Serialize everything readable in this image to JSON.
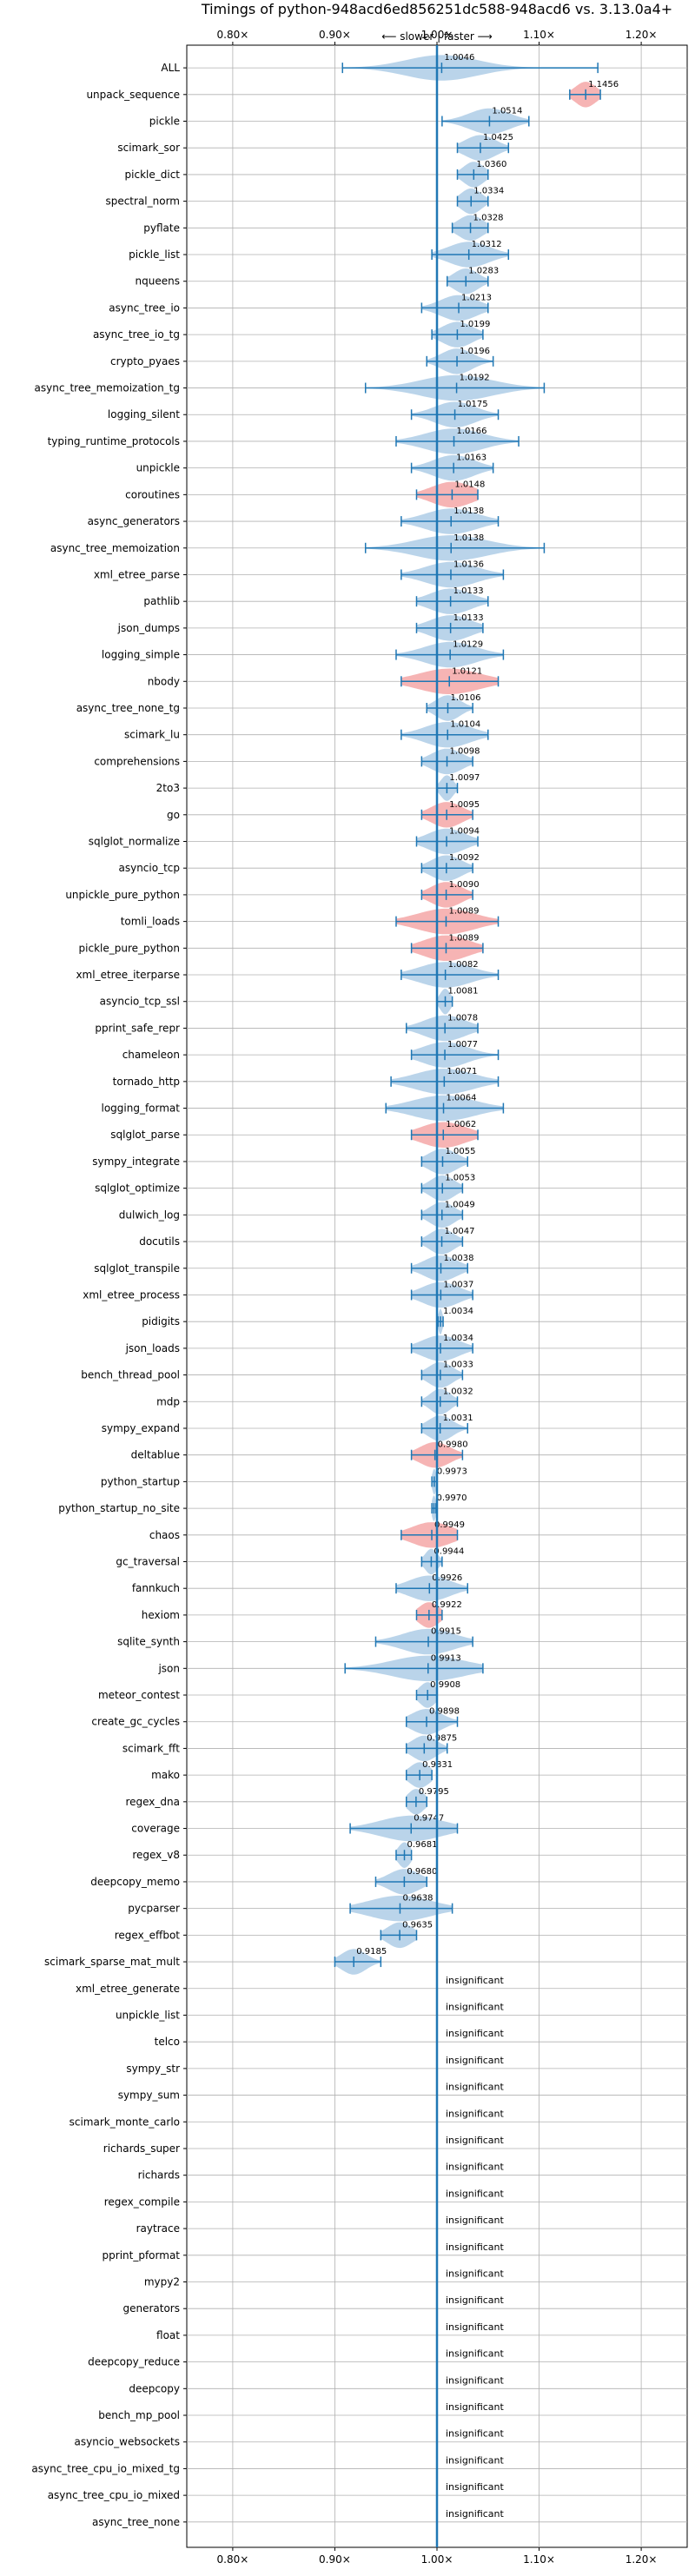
{
  "chart_data": {
    "type": "violin",
    "title": "Timings of python-948acd6ed856251dc588-948acd6 vs. 3.13.0a4+",
    "direction_label": "⟵ slower  |  faster ⟶",
    "xlim": [
      0.755,
      1.245
    ],
    "x_ticks": [
      0.8,
      0.9,
      1.0,
      1.1,
      1.2
    ],
    "x_tick_labels": [
      "0.80×",
      "0.90×",
      "1.00×",
      "1.10×",
      "1.20×"
    ],
    "grid": true,
    "colors": {
      "faster": "#aecde6",
      "slower": "#f5a7a7",
      "line": "#1f77b4",
      "grid": "#b0b0b0"
    },
    "insignificant_label": "insignificant",
    "benchmarks": [
      {
        "name": "ALL",
        "value": 1.0046,
        "min": 0.9075,
        "max": 1.1575,
        "spread": 0.035,
        "kind": "faster"
      },
      {
        "name": "unpack_sequence",
        "value": 1.1456,
        "min": 1.13,
        "max": 1.16,
        "spread": 0.01,
        "kind": "slower"
      },
      {
        "name": "pickle",
        "value": 1.0514,
        "min": 1.005,
        "max": 1.09,
        "spread": 0.02,
        "kind": "faster"
      },
      {
        "name": "scimark_sor",
        "value": 1.0425,
        "min": 1.02,
        "max": 1.07,
        "spread": 0.015,
        "kind": "faster"
      },
      {
        "name": "pickle_dict",
        "value": 1.036,
        "min": 1.02,
        "max": 1.05,
        "spread": 0.01,
        "kind": "faster"
      },
      {
        "name": "spectral_norm",
        "value": 1.0334,
        "min": 1.02,
        "max": 1.05,
        "spread": 0.01,
        "kind": "faster"
      },
      {
        "name": "pyflate",
        "value": 1.0328,
        "min": 1.015,
        "max": 1.05,
        "spread": 0.012,
        "kind": "faster"
      },
      {
        "name": "pickle_list",
        "value": 1.0312,
        "min": 0.995,
        "max": 1.07,
        "spread": 0.02,
        "kind": "faster"
      },
      {
        "name": "nqueens",
        "value": 1.0283,
        "min": 1.01,
        "max": 1.05,
        "spread": 0.012,
        "kind": "faster"
      },
      {
        "name": "async_tree_io",
        "value": 1.0213,
        "min": 0.985,
        "max": 1.05,
        "spread": 0.018,
        "kind": "faster"
      },
      {
        "name": "async_tree_io_tg",
        "value": 1.0199,
        "min": 0.995,
        "max": 1.045,
        "spread": 0.015,
        "kind": "faster"
      },
      {
        "name": "crypto_pyaes",
        "value": 1.0196,
        "min": 0.99,
        "max": 1.055,
        "spread": 0.015,
        "kind": "faster"
      },
      {
        "name": "async_tree_memoization_tg",
        "value": 1.0192,
        "min": 0.93,
        "max": 1.105,
        "spread": 0.035,
        "kind": "faster"
      },
      {
        "name": "logging_silent",
        "value": 1.0175,
        "min": 0.975,
        "max": 1.06,
        "spread": 0.02,
        "kind": "faster"
      },
      {
        "name": "typing_runtime_protocols",
        "value": 1.0166,
        "min": 0.96,
        "max": 1.08,
        "spread": 0.028,
        "kind": "faster"
      },
      {
        "name": "unpickle",
        "value": 1.0163,
        "min": 0.975,
        "max": 1.055,
        "spread": 0.02,
        "kind": "faster"
      },
      {
        "name": "coroutines",
        "value": 1.0148,
        "min": 0.98,
        "max": 1.04,
        "spread": 0.02,
        "kind": "slower"
      },
      {
        "name": "async_generators",
        "value": 1.0138,
        "min": 0.965,
        "max": 1.06,
        "spread": 0.025,
        "kind": "faster"
      },
      {
        "name": "async_tree_memoization",
        "value": 1.0138,
        "min": 0.93,
        "max": 1.105,
        "spread": 0.035,
        "kind": "faster"
      },
      {
        "name": "xml_etree_parse",
        "value": 1.0136,
        "min": 0.965,
        "max": 1.065,
        "spread": 0.025,
        "kind": "faster"
      },
      {
        "name": "pathlib",
        "value": 1.0133,
        "min": 0.98,
        "max": 1.05,
        "spread": 0.02,
        "kind": "faster"
      },
      {
        "name": "json_dumps",
        "value": 1.0133,
        "min": 0.98,
        "max": 1.045,
        "spread": 0.02,
        "kind": "faster"
      },
      {
        "name": "logging_simple",
        "value": 1.0129,
        "min": 0.96,
        "max": 1.065,
        "spread": 0.025,
        "kind": "faster"
      },
      {
        "name": "nbody",
        "value": 1.0121,
        "min": 0.965,
        "max": 1.06,
        "spread": 0.03,
        "kind": "slower"
      },
      {
        "name": "async_tree_none_tg",
        "value": 1.0106,
        "min": 0.99,
        "max": 1.035,
        "spread": 0.012,
        "kind": "faster"
      },
      {
        "name": "scimark_lu",
        "value": 1.0104,
        "min": 0.965,
        "max": 1.05,
        "spread": 0.022,
        "kind": "faster"
      },
      {
        "name": "comprehensions",
        "value": 1.0098,
        "min": 0.985,
        "max": 1.035,
        "spread": 0.015,
        "kind": "faster"
      },
      {
        "name": "2to3",
        "value": 1.0097,
        "min": 1.0,
        "max": 1.02,
        "spread": 0.006,
        "kind": "faster"
      },
      {
        "name": "go",
        "value": 1.0095,
        "min": 0.985,
        "max": 1.035,
        "spread": 0.015,
        "kind": "slower"
      },
      {
        "name": "sqlglot_normalize",
        "value": 1.0094,
        "min": 0.98,
        "max": 1.04,
        "spread": 0.018,
        "kind": "faster"
      },
      {
        "name": "asyncio_tcp",
        "value": 1.0092,
        "min": 0.985,
        "max": 1.035,
        "spread": 0.015,
        "kind": "faster"
      },
      {
        "name": "unpickle_pure_python",
        "value": 1.009,
        "min": 0.985,
        "max": 1.035,
        "spread": 0.015,
        "kind": "slower"
      },
      {
        "name": "tomli_loads",
        "value": 1.0089,
        "min": 0.96,
        "max": 1.06,
        "spread": 0.028,
        "kind": "slower"
      },
      {
        "name": "pickle_pure_python",
        "value": 1.0089,
        "min": 0.975,
        "max": 1.045,
        "spread": 0.022,
        "kind": "slower"
      },
      {
        "name": "xml_etree_iterparse",
        "value": 1.0082,
        "min": 0.965,
        "max": 1.06,
        "spread": 0.025,
        "kind": "faster"
      },
      {
        "name": "asyncio_tcp_ssl",
        "value": 1.0081,
        "min": 1.0,
        "max": 1.015,
        "spread": 0.005,
        "kind": "faster"
      },
      {
        "name": "pprint_safe_repr",
        "value": 1.0078,
        "min": 0.97,
        "max": 1.04,
        "spread": 0.02,
        "kind": "faster"
      },
      {
        "name": "chameleon",
        "value": 1.0077,
        "min": 0.975,
        "max": 1.06,
        "spread": 0.022,
        "kind": "faster"
      },
      {
        "name": "tornado_http",
        "value": 1.0071,
        "min": 0.955,
        "max": 1.06,
        "spread": 0.028,
        "kind": "faster"
      },
      {
        "name": "logging_format",
        "value": 1.0064,
        "min": 0.95,
        "max": 1.065,
        "spread": 0.03,
        "kind": "faster"
      },
      {
        "name": "sqlglot_parse",
        "value": 1.0062,
        "min": 0.975,
        "max": 1.04,
        "spread": 0.022,
        "kind": "slower"
      },
      {
        "name": "sympy_integrate",
        "value": 1.0055,
        "min": 0.985,
        "max": 1.03,
        "spread": 0.014,
        "kind": "faster"
      },
      {
        "name": "sqlglot_optimize",
        "value": 1.0053,
        "min": 0.985,
        "max": 1.025,
        "spread": 0.012,
        "kind": "faster"
      },
      {
        "name": "dulwich_log",
        "value": 1.0049,
        "min": 0.985,
        "max": 1.025,
        "spread": 0.012,
        "kind": "faster"
      },
      {
        "name": "docutils",
        "value": 1.0047,
        "min": 0.985,
        "max": 1.025,
        "spread": 0.012,
        "kind": "faster"
      },
      {
        "name": "sqlglot_transpile",
        "value": 1.0038,
        "min": 0.975,
        "max": 1.03,
        "spread": 0.016,
        "kind": "faster"
      },
      {
        "name": "xml_etree_process",
        "value": 1.0037,
        "min": 0.975,
        "max": 1.035,
        "spread": 0.018,
        "kind": "faster"
      },
      {
        "name": "pidigits",
        "value": 1.0034,
        "min": 1.001,
        "max": 1.006,
        "spread": 0.002,
        "kind": "faster"
      },
      {
        "name": "json_loads",
        "value": 1.0034,
        "min": 0.975,
        "max": 1.035,
        "spread": 0.018,
        "kind": "faster"
      },
      {
        "name": "bench_thread_pool",
        "value": 1.0033,
        "min": 0.985,
        "max": 1.025,
        "spread": 0.012,
        "kind": "faster"
      },
      {
        "name": "mdp",
        "value": 1.0032,
        "min": 0.985,
        "max": 1.02,
        "spread": 0.01,
        "kind": "faster"
      },
      {
        "name": "sympy_expand",
        "value": 1.0031,
        "min": 0.985,
        "max": 1.03,
        "spread": 0.012,
        "kind": "faster"
      },
      {
        "name": "deltablue",
        "value": 0.998,
        "min": 0.975,
        "max": 1.025,
        "spread": 0.015,
        "kind": "slower"
      },
      {
        "name": "python_startup",
        "value": 0.9973,
        "min": 0.995,
        "max": 1.0,
        "spread": 0.002,
        "kind": "faster"
      },
      {
        "name": "python_startup_no_site",
        "value": 0.997,
        "min": 0.995,
        "max": 0.999,
        "spread": 0.002,
        "kind": "faster"
      },
      {
        "name": "chaos",
        "value": 0.9949,
        "min": 0.965,
        "max": 1.02,
        "spread": 0.02,
        "kind": "slower"
      },
      {
        "name": "gc_traversal",
        "value": 0.9944,
        "min": 0.985,
        "max": 1.005,
        "spread": 0.006,
        "kind": "faster"
      },
      {
        "name": "fannkuch",
        "value": 0.9926,
        "min": 0.96,
        "max": 1.03,
        "spread": 0.02,
        "kind": "faster"
      },
      {
        "name": "hexiom",
        "value": 0.9922,
        "min": 0.98,
        "max": 1.005,
        "spread": 0.01,
        "kind": "slower"
      },
      {
        "name": "sqlite_synth",
        "value": 0.9915,
        "min": 0.94,
        "max": 1.035,
        "spread": 0.025,
        "kind": "faster"
      },
      {
        "name": "json",
        "value": 0.9913,
        "min": 0.91,
        "max": 1.045,
        "spread": 0.035,
        "kind": "faster"
      },
      {
        "name": "meteor_contest",
        "value": 0.9908,
        "min": 0.98,
        "max": 1.0,
        "spread": 0.008,
        "kind": "faster"
      },
      {
        "name": "create_gc_cycles",
        "value": 0.9898,
        "min": 0.97,
        "max": 1.02,
        "spread": 0.015,
        "kind": "faster"
      },
      {
        "name": "scimark_fft",
        "value": 0.9875,
        "min": 0.97,
        "max": 1.01,
        "spread": 0.012,
        "kind": "faster"
      },
      {
        "name": "mako",
        "value": 0.9831,
        "min": 0.97,
        "max": 0.995,
        "spread": 0.01,
        "kind": "faster"
      },
      {
        "name": "regex_dna",
        "value": 0.9795,
        "min": 0.97,
        "max": 0.99,
        "spread": 0.008,
        "kind": "faster"
      },
      {
        "name": "coverage",
        "value": 0.9747,
        "min": 0.915,
        "max": 1.02,
        "spread": 0.03,
        "kind": "faster"
      },
      {
        "name": "regex_v8",
        "value": 0.9681,
        "min": 0.96,
        "max": 0.975,
        "spread": 0.006,
        "kind": "faster"
      },
      {
        "name": "deepcopy_memo",
        "value": 0.968,
        "min": 0.94,
        "max": 0.99,
        "spread": 0.015,
        "kind": "faster"
      },
      {
        "name": "pycparser",
        "value": 0.9638,
        "min": 0.915,
        "max": 1.015,
        "spread": 0.03,
        "kind": "faster"
      },
      {
        "name": "regex_effbot",
        "value": 0.9635,
        "min": 0.945,
        "max": 0.98,
        "spread": 0.012,
        "kind": "faster"
      },
      {
        "name": "scimark_sparse_mat_mult",
        "value": 0.9185,
        "min": 0.9,
        "max": 0.945,
        "spread": 0.012,
        "kind": "faster"
      },
      {
        "name": "xml_etree_generate",
        "value": null,
        "kind": "insignificant"
      },
      {
        "name": "unpickle_list",
        "value": null,
        "kind": "insignificant"
      },
      {
        "name": "telco",
        "value": null,
        "kind": "insignificant"
      },
      {
        "name": "sympy_str",
        "value": null,
        "kind": "insignificant"
      },
      {
        "name": "sympy_sum",
        "value": null,
        "kind": "insignificant"
      },
      {
        "name": "scimark_monte_carlo",
        "value": null,
        "kind": "insignificant"
      },
      {
        "name": "richards_super",
        "value": null,
        "kind": "insignificant"
      },
      {
        "name": "richards",
        "value": null,
        "kind": "insignificant"
      },
      {
        "name": "regex_compile",
        "value": null,
        "kind": "insignificant"
      },
      {
        "name": "raytrace",
        "value": null,
        "kind": "insignificant"
      },
      {
        "name": "pprint_pformat",
        "value": null,
        "kind": "insignificant"
      },
      {
        "name": "mypy2",
        "value": null,
        "kind": "insignificant"
      },
      {
        "name": "generators",
        "value": null,
        "kind": "insignificant"
      },
      {
        "name": "float",
        "value": null,
        "kind": "insignificant"
      },
      {
        "name": "deepcopy_reduce",
        "value": null,
        "kind": "insignificant"
      },
      {
        "name": "deepcopy",
        "value": null,
        "kind": "insignificant"
      },
      {
        "name": "bench_mp_pool",
        "value": null,
        "kind": "insignificant"
      },
      {
        "name": "asyncio_websockets",
        "value": null,
        "kind": "insignificant"
      },
      {
        "name": "async_tree_cpu_io_mixed_tg",
        "value": null,
        "kind": "insignificant"
      },
      {
        "name": "async_tree_cpu_io_mixed",
        "value": null,
        "kind": "insignificant"
      },
      {
        "name": "async_tree_none",
        "value": null,
        "kind": "insignificant"
      }
    ]
  }
}
